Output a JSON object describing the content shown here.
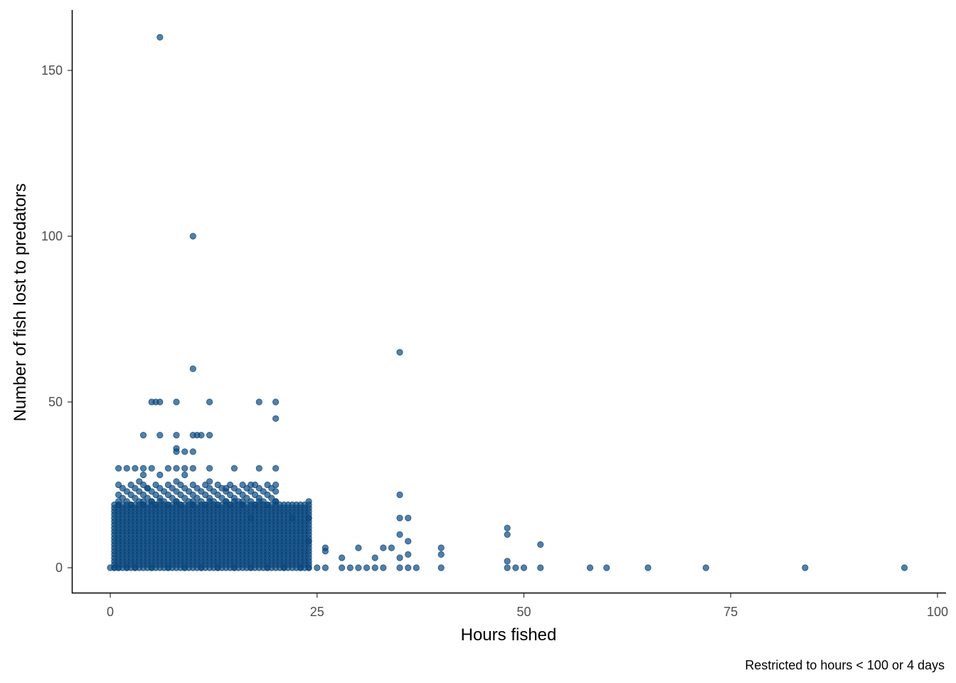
{
  "chart_data": {
    "type": "scatter",
    "title": "",
    "xlabel": "Hours fished",
    "ylabel": "Number of fish lost to predators",
    "caption": "Restricted to hours < 100 or 4 days",
    "xlim": [
      -2.5,
      100.5
    ],
    "ylim": [
      -8,
      166
    ],
    "x_ticks": [
      0,
      25,
      50,
      75,
      100
    ],
    "y_ticks": [
      0,
      50,
      100,
      150
    ],
    "grid": false,
    "legend": "none",
    "point_color": "#084a83",
    "point_alpha": 0.7,
    "series": [
      {
        "points": [
          [
            6,
            160
          ],
          [
            10,
            100
          ],
          [
            35,
            65
          ],
          [
            10,
            60
          ],
          [
            5,
            50
          ],
          [
            5.5,
            50
          ],
          [
            6,
            50
          ],
          [
            8,
            50
          ],
          [
            12,
            50
          ],
          [
            18,
            50
          ],
          [
            20,
            50
          ],
          [
            20,
            45
          ],
          [
            4,
            40
          ],
          [
            6,
            40
          ],
          [
            8,
            40
          ],
          [
            10,
            40
          ],
          [
            10.5,
            40
          ],
          [
            11,
            40
          ],
          [
            12,
            40
          ],
          [
            8,
            36
          ],
          [
            8,
            35
          ],
          [
            9,
            35
          ],
          [
            10,
            35
          ],
          [
            1,
            30
          ],
          [
            2,
            30
          ],
          [
            3,
            30
          ],
          [
            4,
            30
          ],
          [
            5,
            30
          ],
          [
            7,
            30
          ],
          [
            8,
            30
          ],
          [
            9,
            30
          ],
          [
            10,
            30
          ],
          [
            12,
            30
          ],
          [
            15,
            30
          ],
          [
            18,
            30
          ],
          [
            20,
            30
          ],
          [
            9,
            28
          ],
          [
            4,
            28
          ],
          [
            6,
            28
          ],
          [
            12,
            26
          ],
          [
            8,
            26
          ],
          [
            3.5,
            26
          ],
          [
            17,
            25
          ],
          [
            20,
            25
          ],
          [
            4.5,
            24
          ],
          [
            14,
            24
          ],
          [
            35,
            22
          ],
          [
            1,
            20
          ],
          [
            4,
            20
          ],
          [
            5,
            20
          ],
          [
            6,
            20
          ],
          [
            8,
            20
          ],
          [
            10,
            20
          ],
          [
            12,
            20
          ],
          [
            14,
            20
          ],
          [
            15,
            20
          ],
          [
            16,
            20
          ],
          [
            18,
            20
          ],
          [
            20,
            20
          ],
          [
            24,
            20
          ],
          [
            35,
            15
          ],
          [
            36,
            15
          ],
          [
            24,
            15
          ],
          [
            22,
            15
          ],
          [
            17,
            15
          ],
          [
            48,
            12
          ],
          [
            48,
            10
          ],
          [
            35,
            10
          ],
          [
            36,
            8
          ],
          [
            52,
            7
          ],
          [
            26,
            6
          ],
          [
            30,
            6
          ],
          [
            33,
            6
          ],
          [
            34,
            6
          ],
          [
            40,
            6
          ],
          [
            36,
            4
          ],
          [
            40,
            4
          ],
          [
            32,
            3
          ],
          [
            28,
            3
          ],
          [
            35,
            3
          ],
          [
            48,
            2
          ],
          [
            26,
            5
          ],
          [
            24,
            8
          ],
          [
            0,
            0
          ],
          [
            0.5,
            0
          ],
          [
            1,
            0
          ],
          [
            2,
            0
          ],
          [
            3,
            0
          ],
          [
            5,
            0
          ],
          [
            7,
            0
          ],
          [
            9,
            0
          ],
          [
            11,
            0
          ],
          [
            13,
            0
          ],
          [
            15,
            0
          ],
          [
            17,
            0
          ],
          [
            19,
            0
          ],
          [
            21,
            0
          ],
          [
            23,
            0
          ],
          [
            24,
            0
          ],
          [
            25,
            0
          ],
          [
            26,
            0
          ],
          [
            28,
            0
          ],
          [
            29,
            0
          ],
          [
            30,
            0
          ],
          [
            31,
            0
          ],
          [
            32,
            0
          ],
          [
            33,
            0
          ],
          [
            35,
            0
          ],
          [
            36,
            0
          ],
          [
            37,
            0
          ],
          [
            40,
            0
          ],
          [
            48,
            0
          ],
          [
            49,
            0
          ],
          [
            50,
            0
          ],
          [
            52,
            0
          ],
          [
            58,
            0
          ],
          [
            60,
            0
          ],
          [
            65,
            0
          ],
          [
            72,
            0
          ],
          [
            84,
            0
          ],
          [
            96,
            0
          ]
        ],
        "dense_block": [
          {
            "x": [
              0.5,
              24
            ],
            "y": [
              0,
              19
            ]
          },
          {
            "x": [
              1,
              20
            ],
            "y": [
              19,
              25
            ]
          }
        ]
      }
    ]
  }
}
